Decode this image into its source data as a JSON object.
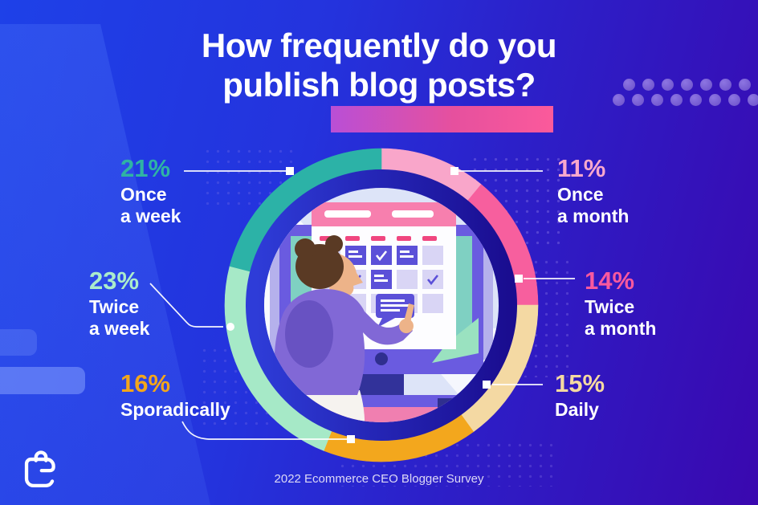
{
  "title": {
    "line1": "How frequently do you",
    "line2": "publish blog posts?"
  },
  "footer": {
    "source": "2022 Ecommerce CEO Blogger Survey"
  },
  "logo": {
    "name": "Ecommerce CEO shopping-bag logo"
  },
  "colors": {
    "background_left": "#1e41e8",
    "background_right": "#3a08af",
    "title_text": "#ffffff",
    "title_highlight_pink": "#e6509e",
    "donut_inner_ring": "#221aa4",
    "donut_inner_circle": "#dde4f8"
  },
  "chart_data": {
    "type": "pie",
    "subtype": "donut",
    "title": "How frequently do you publish blog posts?",
    "source": "2022 Ecommerce CEO Blogger Survey",
    "unit": "%",
    "start_angle_deg_clockwise_from_top": 0,
    "legend_position": "callouts-around-chart",
    "center_content": "illustration of a person pointing at a calendar on a monitor",
    "segments": [
      {
        "label": "Once a month",
        "value": 11,
        "color": "#f9a6ca"
      },
      {
        "label": "Twice a month",
        "value": 14,
        "color": "#f75f9e"
      },
      {
        "label": "Daily",
        "value": 15,
        "color": "#f4d9a3"
      },
      {
        "label": "Sporadically",
        "value": 16,
        "color": "#f3a71d"
      },
      {
        "label": "Twice a week",
        "value": 23,
        "color": "#a6e9c7"
      },
      {
        "label": "Once a week",
        "value": 21,
        "color": "#2cb2a7"
      }
    ]
  },
  "callouts": [
    {
      "pct": "21%",
      "line1": "Once",
      "line2": "a week",
      "color": "#2fb3a4"
    },
    {
      "pct": "23%",
      "line1": "Twice",
      "line2": "a week",
      "color": "#abeccb"
    },
    {
      "pct": "16%",
      "line1": "Sporadically",
      "line2": "",
      "color": "#f3a61b"
    },
    {
      "pct": "11%",
      "line1": "Once",
      "line2": "a month",
      "color": "#f9a8cd"
    },
    {
      "pct": "14%",
      "line1": "Twice",
      "line2": "a month",
      "color": "#f9599e"
    },
    {
      "pct": "15%",
      "line1": "Daily",
      "line2": "",
      "color": "#f5d9a1"
    }
  ]
}
